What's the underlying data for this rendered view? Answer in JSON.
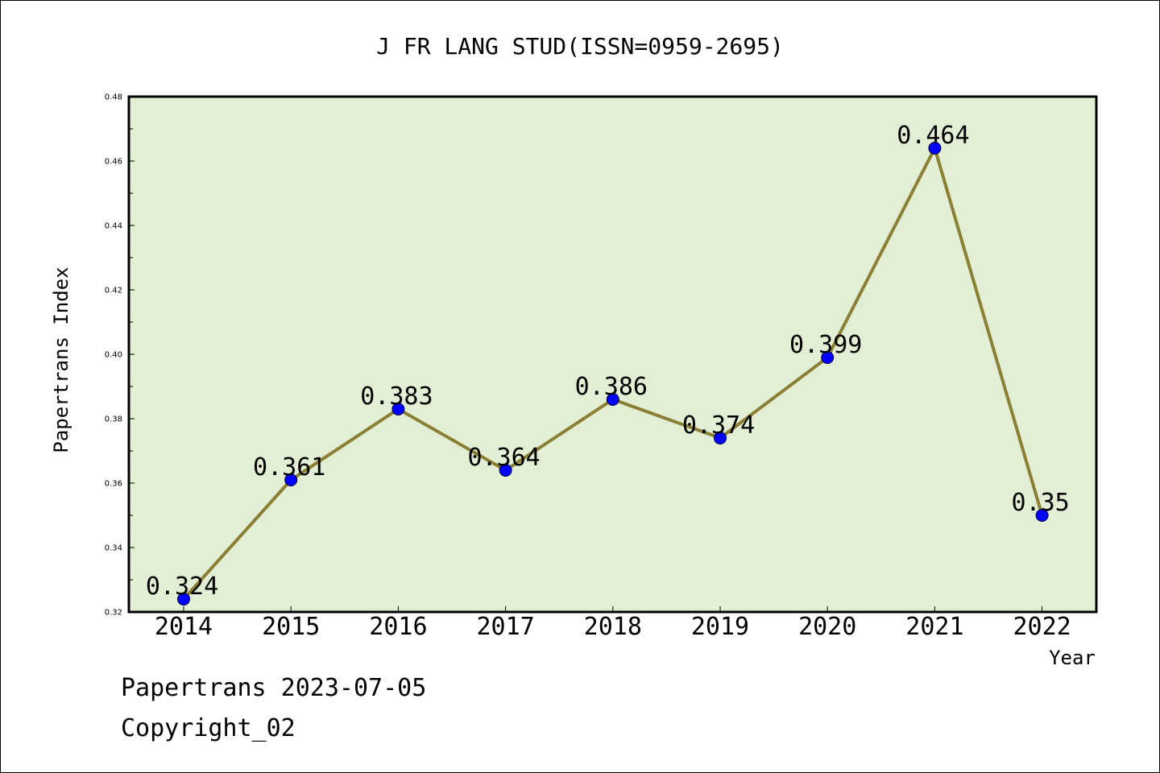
{
  "chart_data": {
    "type": "line",
    "title": "J FR LANG STUD(ISSN=0959-2695)",
    "xlabel": "Year",
    "ylabel": "Papertrans Index",
    "categories": [
      "2014",
      "2015",
      "2016",
      "2017",
      "2018",
      "2019",
      "2020",
      "2021",
      "2022"
    ],
    "series": [
      {
        "values": [
          0.324,
          0.361,
          0.383,
          0.364,
          0.386,
          0.374,
          0.399,
          0.464,
          0.35
        ],
        "labels": [
          "0.324",
          "0.361",
          "0.383",
          "0.364",
          "0.386",
          "0.374",
          "0.399",
          "0.464",
          "0.35"
        ]
      }
    ],
    "ylim": [
      0.32,
      0.48
    ],
    "yticks": [
      "0.32",
      "0.34",
      "0.36",
      "0.38",
      "0.40",
      "0.42",
      "0.44",
      "0.46",
      "0.48"
    ],
    "grid": false,
    "colors": {
      "plot_background": "#e2efd4",
      "line": "#8b7f35",
      "marker": "#0000ff"
    }
  },
  "footer": {
    "line1": "Papertrans 2023-07-05",
    "line2": "Copyright_02"
  }
}
